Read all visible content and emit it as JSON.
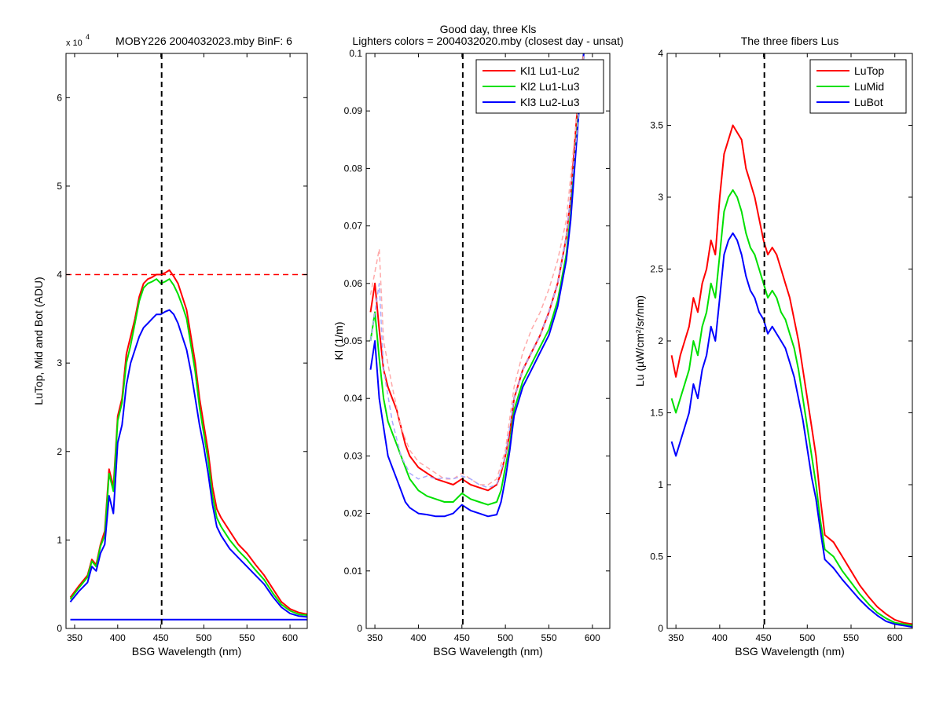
{
  "chart_data": [
    {
      "type": "line",
      "title": "MOBY226  2004032023.mby BinF: 6",
      "exponent_base": "x 10",
      "exponent_power": "4",
      "xlabel": "BSG Wavelength (nm)",
      "ylabel": "LuTop, Mid and Bot (ADU)",
      "xlim": [
        340,
        620
      ],
      "ylim": [
        0,
        6.5
      ],
      "xticks": [
        350,
        400,
        450,
        500,
        550,
        600
      ],
      "yticks": [
        0,
        1,
        2,
        3,
        4,
        5,
        6
      ],
      "grid": false,
      "reference_lines": [
        {
          "orientation": "vertical",
          "x": 451,
          "color": "#000000",
          "style": "dashed"
        },
        {
          "orientation": "horizontal",
          "y": 4.0,
          "color": "#ff0000",
          "style": "dashed"
        }
      ],
      "series": [
        {
          "color": "#ff0000",
          "x": [
            345,
            355,
            365,
            370,
            375,
            380,
            385,
            390,
            395,
            400,
            405,
            410,
            415,
            420,
            425,
            430,
            435,
            440,
            445,
            450,
            455,
            460,
            465,
            470,
            475,
            480,
            485,
            490,
            495,
            500,
            505,
            510,
            515,
            520,
            530,
            540,
            550,
            560,
            570,
            580,
            590,
            600,
            610,
            620
          ],
          "y": [
            0.35,
            0.48,
            0.6,
            0.78,
            0.72,
            0.95,
            1.1,
            1.8,
            1.6,
            2.4,
            2.6,
            3.1,
            3.3,
            3.5,
            3.75,
            3.9,
            3.95,
            3.97,
            4.0,
            4.0,
            4.02,
            4.05,
            3.98,
            3.9,
            3.75,
            3.6,
            3.3,
            3.0,
            2.6,
            2.3,
            2.0,
            1.6,
            1.35,
            1.25,
            1.1,
            0.95,
            0.85,
            0.72,
            0.6,
            0.45,
            0.3,
            0.22,
            0.18,
            0.16
          ]
        },
        {
          "color": "#00e000",
          "x": [
            345,
            355,
            365,
            370,
            375,
            380,
            385,
            390,
            395,
            400,
            405,
            410,
            415,
            420,
            425,
            430,
            435,
            440,
            445,
            450,
            455,
            460,
            465,
            470,
            475,
            480,
            485,
            490,
            495,
            500,
            505,
            510,
            515,
            520,
            530,
            540,
            550,
            560,
            570,
            580,
            590,
            600,
            610,
            620
          ],
          "y": [
            0.33,
            0.46,
            0.58,
            0.76,
            0.7,
            0.93,
            1.05,
            1.75,
            1.55,
            2.35,
            2.55,
            3.0,
            3.2,
            3.45,
            3.7,
            3.85,
            3.9,
            3.92,
            3.95,
            3.9,
            3.92,
            3.95,
            3.88,
            3.78,
            3.65,
            3.5,
            3.2,
            2.9,
            2.5,
            2.2,
            1.9,
            1.5,
            1.25,
            1.15,
            1.0,
            0.88,
            0.78,
            0.66,
            0.55,
            0.4,
            0.27,
            0.2,
            0.16,
            0.15
          ]
        },
        {
          "color": "#0000ff",
          "x": [
            345,
            355,
            365,
            370,
            375,
            380,
            385,
            390,
            395,
            400,
            405,
            410,
            415,
            420,
            425,
            430,
            435,
            440,
            445,
            450,
            455,
            460,
            465,
            470,
            475,
            480,
            485,
            490,
            495,
            500,
            505,
            510,
            515,
            520,
            530,
            540,
            550,
            560,
            570,
            580,
            590,
            600,
            610,
            620
          ],
          "y": [
            0.3,
            0.42,
            0.52,
            0.7,
            0.65,
            0.85,
            0.95,
            1.5,
            1.3,
            2.1,
            2.3,
            2.75,
            3.0,
            3.15,
            3.3,
            3.4,
            3.45,
            3.5,
            3.55,
            3.55,
            3.58,
            3.6,
            3.55,
            3.45,
            3.3,
            3.15,
            2.9,
            2.6,
            2.3,
            2.05,
            1.75,
            1.4,
            1.15,
            1.05,
            0.9,
            0.8,
            0.7,
            0.6,
            0.5,
            0.36,
            0.24,
            0.17,
            0.14,
            0.13
          ]
        },
        {
          "color": "#0000ff",
          "x": [
            345,
            620
          ],
          "y": [
            0.1,
            0.1
          ]
        }
      ]
    },
    {
      "type": "line",
      "title": "Good day, three Kls",
      "subtitle": "Lighters colors = 2004032020.mby (closest day - unsat)",
      "xlabel": "BSG Wavelength (nm)",
      "ylabel": "Kl (1/m)",
      "xlim": [
        340,
        620
      ],
      "ylim": [
        0,
        0.1
      ],
      "xticks": [
        350,
        400,
        450,
        500,
        550,
        600
      ],
      "yticks": [
        0,
        0.01,
        0.02,
        0.03,
        0.04,
        0.05,
        0.06,
        0.07,
        0.08,
        0.09,
        0.1
      ],
      "grid": false,
      "legend_position": "top-right",
      "reference_lines": [
        {
          "orientation": "vertical",
          "x": 451,
          "color": "#000000",
          "style": "dashed"
        }
      ],
      "series": [
        {
          "name": "Kl1 Lu1-Lu2",
          "color": "#ff0000",
          "x": [
            345,
            350,
            355,
            360,
            365,
            370,
            375,
            380,
            385,
            390,
            395,
            400,
            410,
            420,
            430,
            440,
            450,
            455,
            460,
            470,
            480,
            490,
            495,
            500,
            505,
            510,
            520,
            530,
            540,
            550,
            560,
            570,
            575,
            580,
            585,
            590
          ],
          "y": [
            0.055,
            0.06,
            0.052,
            0.045,
            0.042,
            0.04,
            0.038,
            0.035,
            0.032,
            0.03,
            0.029,
            0.028,
            0.027,
            0.026,
            0.0255,
            0.025,
            0.026,
            0.0255,
            0.025,
            0.0245,
            0.024,
            0.025,
            0.027,
            0.03,
            0.034,
            0.04,
            0.045,
            0.048,
            0.051,
            0.055,
            0.06,
            0.068,
            0.075,
            0.085,
            0.095,
            0.1
          ]
        },
        {
          "name": "Kl2 Lu1-Lu3",
          "color": "#00e000",
          "x": [
            345,
            350,
            355,
            360,
            365,
            370,
            375,
            380,
            385,
            390,
            395,
            400,
            410,
            420,
            430,
            440,
            450,
            455,
            460,
            470,
            480,
            490,
            495,
            500,
            505,
            510,
            520,
            530,
            540,
            550,
            560,
            570,
            575,
            580,
            585,
            590
          ],
          "y": [
            0.05,
            0.055,
            0.047,
            0.04,
            0.036,
            0.034,
            0.032,
            0.03,
            0.028,
            0.026,
            0.025,
            0.024,
            0.023,
            0.0225,
            0.022,
            0.022,
            0.0235,
            0.023,
            0.0225,
            0.022,
            0.0215,
            0.022,
            0.024,
            0.028,
            0.032,
            0.038,
            0.043,
            0.046,
            0.049,
            0.052,
            0.057,
            0.065,
            0.072,
            0.082,
            0.092,
            0.1
          ]
        },
        {
          "name": "Kl3 Lu2-Lu3",
          "color": "#0000ff",
          "x": [
            345,
            350,
            355,
            360,
            365,
            370,
            375,
            380,
            385,
            390,
            395,
            400,
            410,
            420,
            430,
            440,
            450,
            455,
            460,
            470,
            480,
            490,
            495,
            500,
            505,
            510,
            520,
            530,
            540,
            550,
            560,
            570,
            575,
            580,
            585,
            590
          ],
          "y": [
            0.045,
            0.05,
            0.04,
            0.035,
            0.03,
            0.028,
            0.026,
            0.024,
            0.022,
            0.021,
            0.0205,
            0.02,
            0.0198,
            0.0195,
            0.0195,
            0.02,
            0.0215,
            0.021,
            0.0205,
            0.02,
            0.0195,
            0.0198,
            0.022,
            0.026,
            0.031,
            0.037,
            0.042,
            0.045,
            0.048,
            0.051,
            0.056,
            0.064,
            0.071,
            0.081,
            0.091,
            0.1
          ]
        },
        {
          "color": "#ffaaaa",
          "style": "dashed",
          "x": [
            345,
            350,
            355,
            360,
            370,
            380,
            390,
            400,
            410,
            420,
            430,
            440,
            450,
            460,
            470,
            480,
            490,
            500,
            510,
            520,
            530,
            540,
            550,
            560,
            570,
            580,
            590
          ],
          "y": [
            0.058,
            0.062,
            0.066,
            0.05,
            0.042,
            0.035,
            0.031,
            0.029,
            0.028,
            0.027,
            0.026,
            0.026,
            0.027,
            0.026,
            0.025,
            0.025,
            0.026,
            0.031,
            0.042,
            0.048,
            0.052,
            0.055,
            0.059,
            0.064,
            0.071,
            0.086,
            0.1
          ]
        },
        {
          "color": "#aaaaff",
          "style": "dashed",
          "x": [
            345,
            350,
            355,
            360,
            370,
            380,
            390,
            400,
            410,
            420,
            430,
            440,
            450,
            460,
            470,
            480,
            490,
            500,
            510,
            520,
            530,
            540,
            550,
            560,
            570,
            580,
            590
          ],
          "y": [
            0.05,
            0.055,
            0.06,
            0.045,
            0.036,
            0.03,
            0.027,
            0.026,
            0.0265,
            0.026,
            0.0262,
            0.026,
            0.0265,
            0.026,
            0.025,
            0.0245,
            0.025,
            0.03,
            0.04,
            0.045,
            0.048,
            0.051,
            0.055,
            0.06,
            0.068,
            0.083,
            0.098
          ]
        }
      ]
    },
    {
      "type": "line",
      "title": "The three fibers Lus",
      "xlabel": "BSG Wavelength (nm)",
      "ylabel": "Lu (µW/cm²/sr/nm)",
      "xlim": [
        340,
        620
      ],
      "ylim": [
        0,
        4
      ],
      "xticks": [
        350,
        400,
        450,
        500,
        550,
        600
      ],
      "yticks": [
        0,
        0.5,
        1,
        1.5,
        2,
        2.5,
        3,
        3.5,
        4
      ],
      "grid": false,
      "legend_position": "top-right",
      "reference_lines": [
        {
          "orientation": "vertical",
          "x": 451,
          "color": "#000000",
          "style": "dashed"
        }
      ],
      "series": [
        {
          "name": "LuTop",
          "color": "#ff0000",
          "x": [
            345,
            350,
            355,
            360,
            365,
            370,
            375,
            380,
            385,
            390,
            395,
            400,
            405,
            410,
            415,
            420,
            425,
            430,
            435,
            440,
            445,
            450,
            455,
            460,
            465,
            470,
            475,
            480,
            485,
            490,
            495,
            500,
            505,
            510,
            515,
            520,
            530,
            540,
            550,
            560,
            570,
            580,
            590,
            600,
            610,
            620
          ],
          "y": [
            1.9,
            1.75,
            1.9,
            2.0,
            2.1,
            2.3,
            2.2,
            2.4,
            2.5,
            2.7,
            2.6,
            3.0,
            3.3,
            3.4,
            3.5,
            3.45,
            3.4,
            3.2,
            3.1,
            3.0,
            2.85,
            2.7,
            2.6,
            2.65,
            2.6,
            2.5,
            2.4,
            2.3,
            2.15,
            2.0,
            1.8,
            1.6,
            1.4,
            1.2,
            0.9,
            0.65,
            0.6,
            0.5,
            0.4,
            0.3,
            0.22,
            0.15,
            0.1,
            0.06,
            0.04,
            0.03
          ]
        },
        {
          "name": "LuMid",
          "color": "#00e000",
          "x": [
            345,
            350,
            355,
            360,
            365,
            370,
            375,
            380,
            385,
            390,
            395,
            400,
            405,
            410,
            415,
            420,
            425,
            430,
            435,
            440,
            445,
            450,
            455,
            460,
            465,
            470,
            475,
            480,
            485,
            490,
            495,
            500,
            505,
            510,
            515,
            520,
            530,
            540,
            550,
            560,
            570,
            580,
            590,
            600,
            610,
            620
          ],
          "y": [
            1.6,
            1.5,
            1.6,
            1.7,
            1.8,
            2.0,
            1.9,
            2.1,
            2.2,
            2.4,
            2.3,
            2.6,
            2.9,
            3.0,
            3.05,
            3.0,
            2.9,
            2.75,
            2.65,
            2.6,
            2.5,
            2.4,
            2.3,
            2.35,
            2.3,
            2.2,
            2.15,
            2.05,
            1.95,
            1.8,
            1.6,
            1.4,
            1.2,
            1.0,
            0.75,
            0.55,
            0.5,
            0.4,
            0.32,
            0.24,
            0.17,
            0.11,
            0.07,
            0.04,
            0.03,
            0.02
          ]
        },
        {
          "name": "LuBot",
          "color": "#0000ff",
          "x": [
            345,
            350,
            355,
            360,
            365,
            370,
            375,
            380,
            385,
            390,
            395,
            400,
            405,
            410,
            415,
            420,
            425,
            430,
            435,
            440,
            445,
            450,
            455,
            460,
            465,
            470,
            475,
            480,
            485,
            490,
            495,
            500,
            505,
            510,
            515,
            520,
            530,
            540,
            550,
            560,
            570,
            580,
            590,
            600,
            610,
            620
          ],
          "y": [
            1.3,
            1.2,
            1.3,
            1.4,
            1.5,
            1.7,
            1.6,
            1.8,
            1.9,
            2.1,
            2.0,
            2.3,
            2.6,
            2.7,
            2.75,
            2.7,
            2.6,
            2.45,
            2.35,
            2.3,
            2.2,
            2.15,
            2.05,
            2.1,
            2.05,
            2.0,
            1.95,
            1.85,
            1.75,
            1.6,
            1.45,
            1.25,
            1.05,
            0.9,
            0.68,
            0.48,
            0.42,
            0.34,
            0.27,
            0.2,
            0.14,
            0.09,
            0.05,
            0.03,
            0.02,
            0.01
          ]
        }
      ]
    }
  ]
}
